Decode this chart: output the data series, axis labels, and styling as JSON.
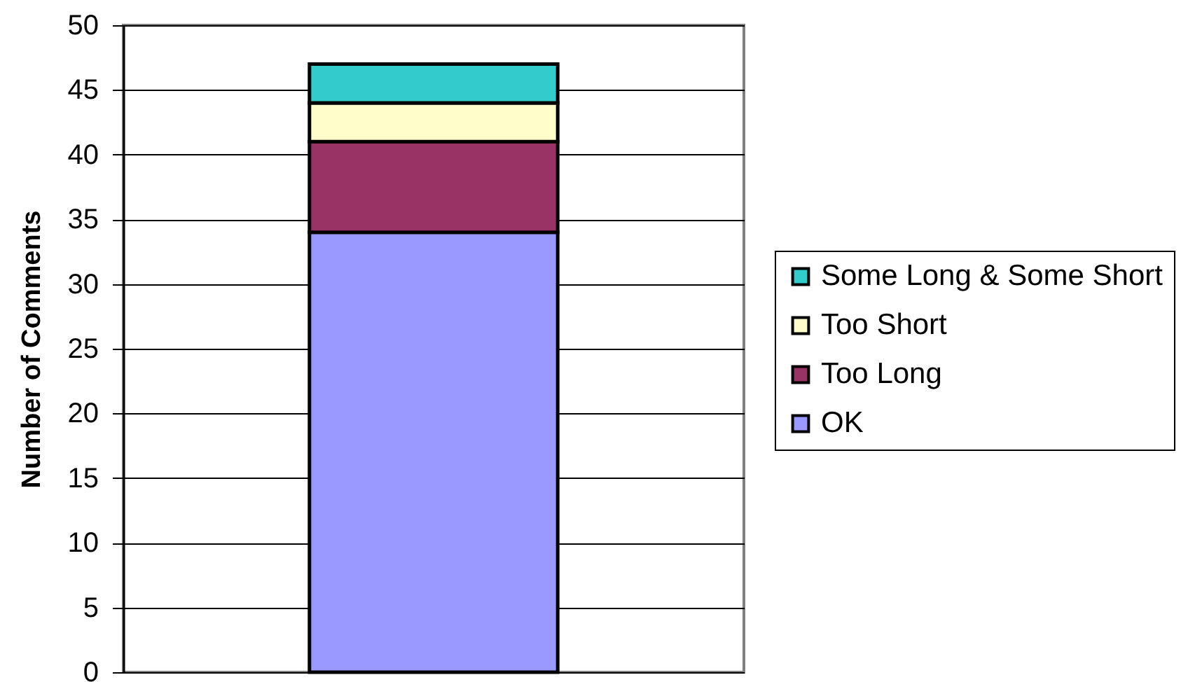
{
  "chart_data": {
    "type": "bar",
    "stacked": true,
    "ylabel": "Number of Comments",
    "categories": [
      null
    ],
    "series": [
      {
        "name": "OK",
        "color": "#9999ff",
        "values": [
          34
        ]
      },
      {
        "name": "Too Long",
        "color": "#993366",
        "values": [
          7
        ]
      },
      {
        "name": "Too Short",
        "color": "#ffffcc",
        "values": [
          3
        ]
      },
      {
        "name": "Some Long & Some Short",
        "color": "#33cccc",
        "values": [
          3
        ]
      }
    ],
    "ylim": [
      0,
      50
    ],
    "yticks": [
      0,
      5,
      10,
      15,
      20,
      25,
      30,
      35,
      40,
      45,
      50
    ],
    "grid": "y",
    "legend": "right"
  }
}
